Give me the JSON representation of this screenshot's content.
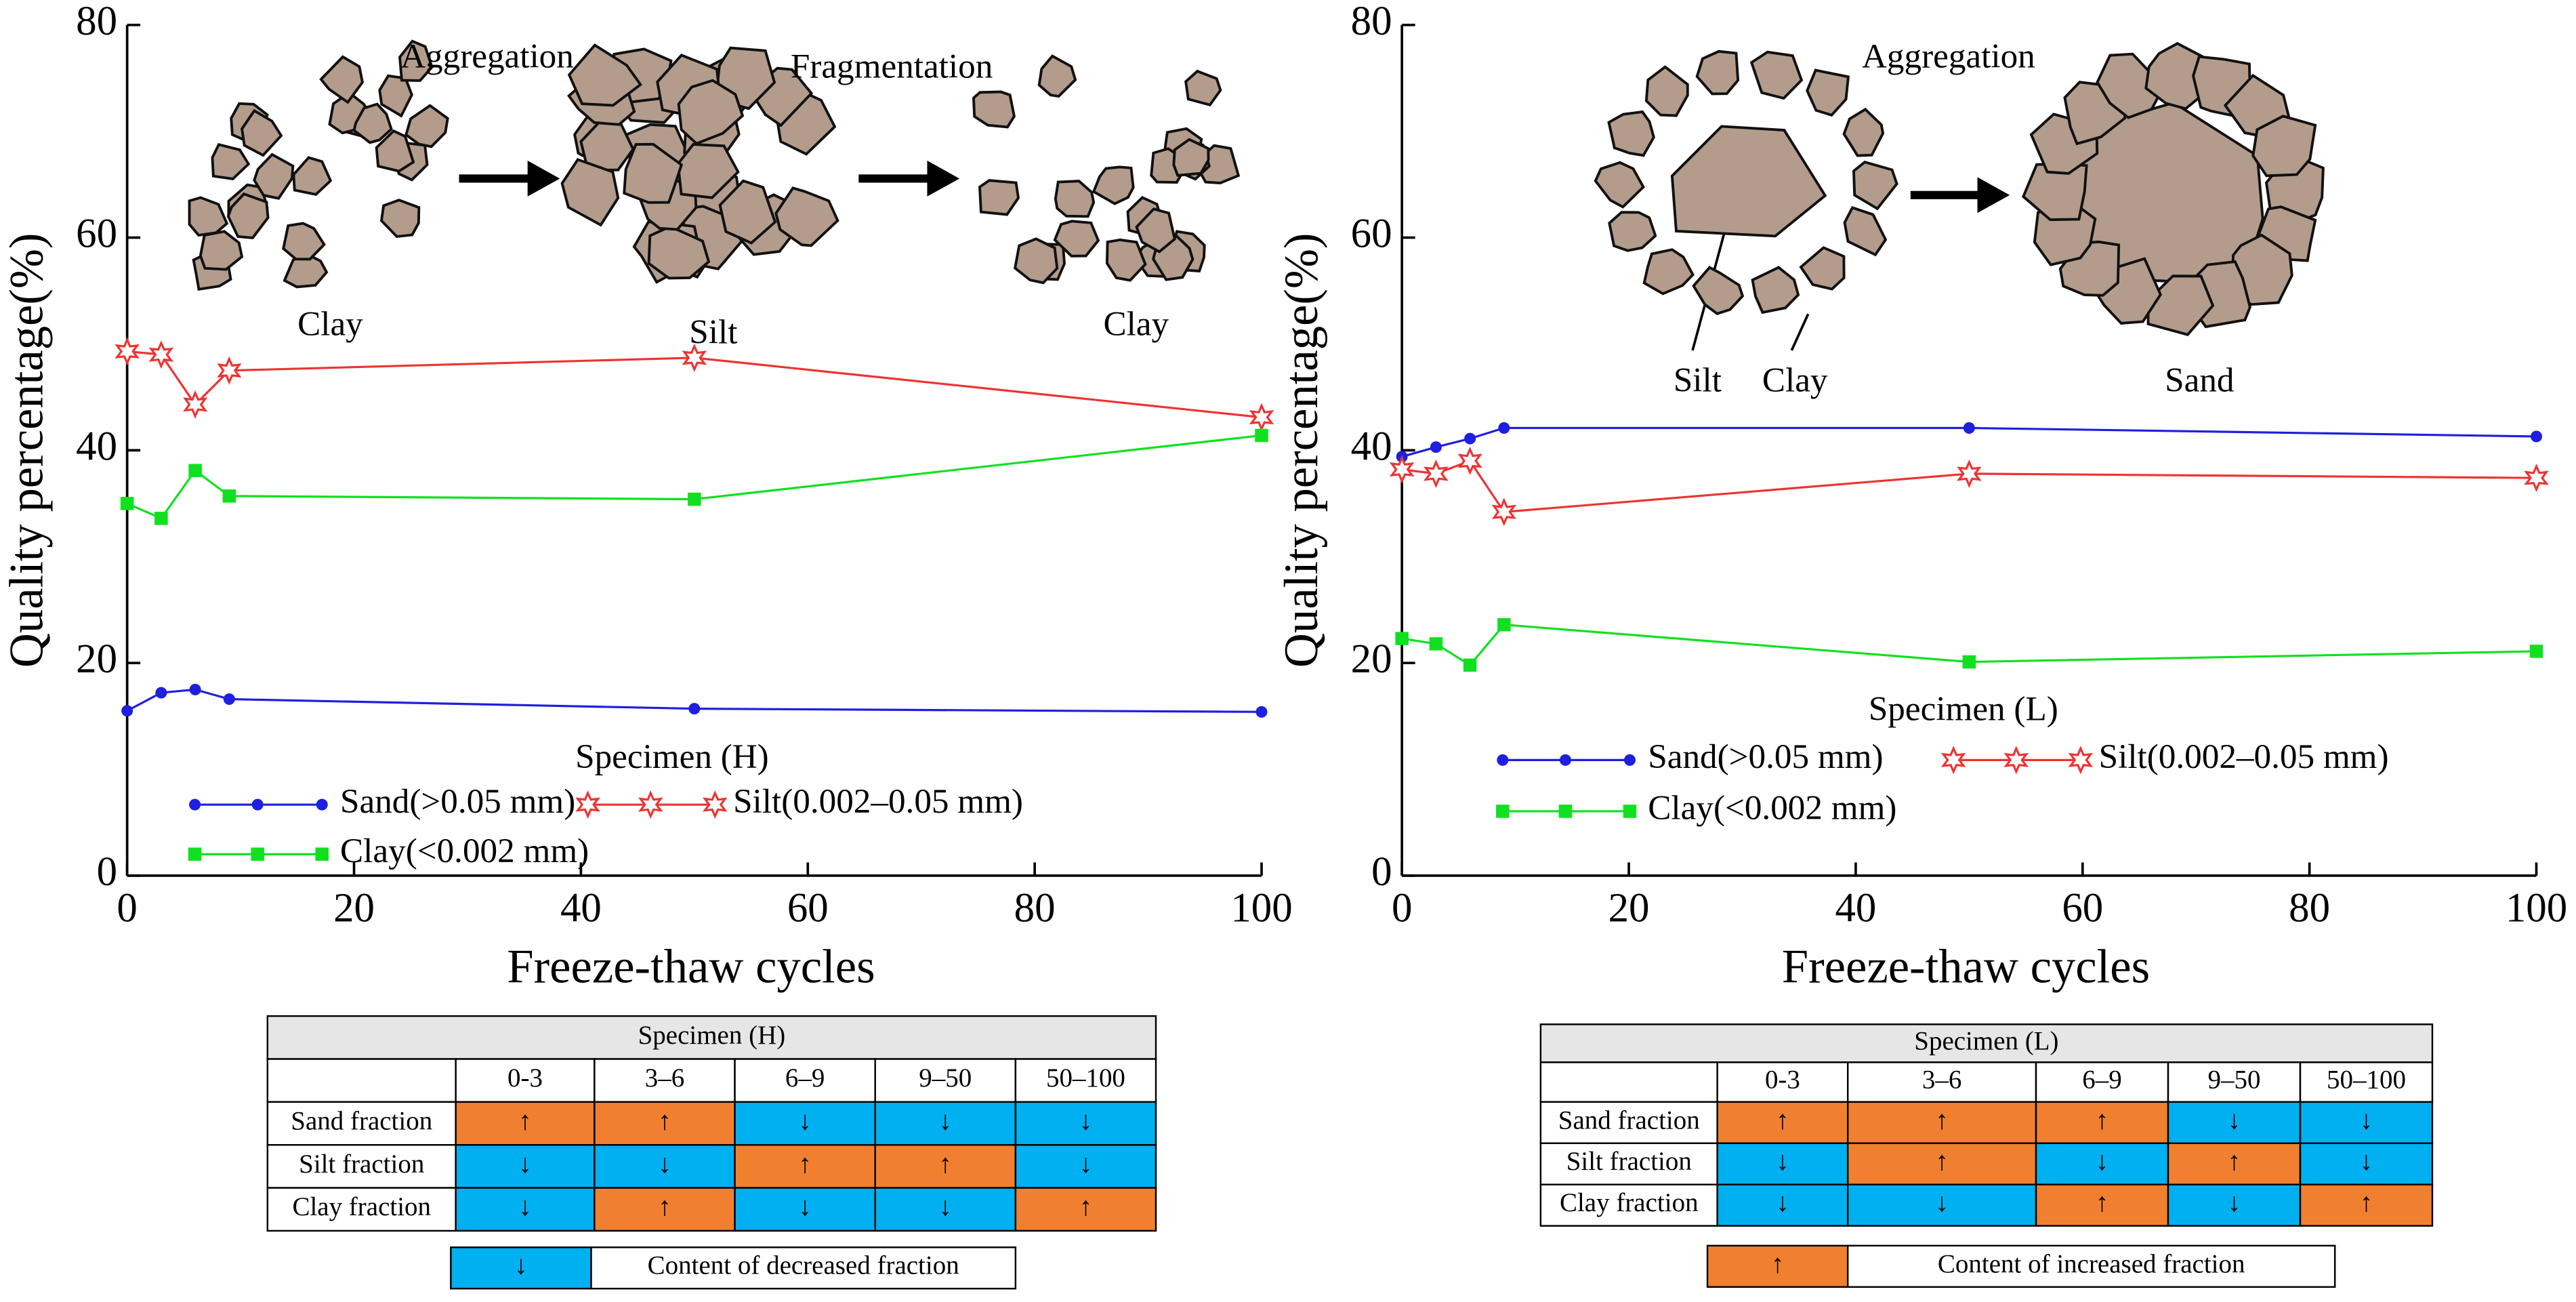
{
  "chart_data": [
    {
      "type": "line",
      "annotation": "Specimen (H)",
      "xlabel": "Freeze-thaw cycles",
      "ylabel": "Quality percentage(%)",
      "x": [
        0,
        3,
        6,
        9,
        50,
        100
      ],
      "xlim": [
        0,
        100
      ],
      "ylim": [
        0,
        80
      ],
      "xticks": [
        0,
        20,
        40,
        60,
        80,
        100
      ],
      "yticks": [
        0,
        20,
        40,
        60,
        80
      ],
      "series": [
        {
          "name": "Sand(>0.05 mm)",
          "color": "#1f1fe0",
          "marker": "circle",
          "values": [
            15.5,
            17.2,
            17.5,
            16.6,
            15.7,
            15.4
          ]
        },
        {
          "name": "Silt(0.002–0.05 mm)",
          "color": "#ee3333",
          "marker": "star",
          "values": [
            49.3,
            49.0,
            44.3,
            47.5,
            48.7,
            43.1
          ]
        },
        {
          "name": "Clay(<0.002 mm)",
          "color": "#10e020",
          "marker": "square",
          "values": [
            35.0,
            33.6,
            38.1,
            35.7,
            35.4,
            41.4
          ]
        }
      ],
      "illustration_labels": [
        "Aggregation",
        "Fragmentation",
        "Clay",
        "Silt",
        "Clay"
      ],
      "table": {
        "title": "Specimen (H)",
        "columns": [
          "0-3",
          "3–6",
          "6–9",
          "9–50",
          "50–100"
        ],
        "rows": [
          {
            "label": "Sand fraction",
            "cells": [
              "↑",
              "↑",
              "↓",
              "↓",
              "↓"
            ]
          },
          {
            "label": "Silt fraction",
            "cells": [
              "↓",
              "↓",
              "↑",
              "↑",
              "↓"
            ]
          },
          {
            "label": "Clay fraction",
            "cells": [
              "↓",
              "↑",
              "↓",
              "↓",
              "↑"
            ]
          }
        ],
        "legend": {
          "symbol": "↓",
          "text": "Content of decreased fraction"
        }
      }
    },
    {
      "type": "line",
      "annotation": "Specimen (L)",
      "xlabel": "Freeze-thaw cycles",
      "ylabel": "Quality percentage(%)",
      "x": [
        0,
        3,
        6,
        9,
        50,
        100
      ],
      "xlim": [
        0,
        100
      ],
      "ylim": [
        0,
        80
      ],
      "xticks": [
        0,
        20,
        40,
        60,
        80,
        100
      ],
      "yticks": [
        0,
        20,
        40,
        60,
        80
      ],
      "series": [
        {
          "name": "Sand(>0.05 mm)",
          "color": "#1f1fe0",
          "marker": "circle",
          "values": [
            39.4,
            40.3,
            41.1,
            42.1,
            42.1,
            41.3
          ]
        },
        {
          "name": "Silt(0.002–0.05 mm)",
          "color": "#ee3333",
          "marker": "star",
          "values": [
            38.2,
            37.8,
            39.0,
            34.2,
            37.8,
            37.4
          ]
        },
        {
          "name": "Clay(<0.002 mm)",
          "color": "#10e020",
          "marker": "square",
          "values": [
            22.3,
            21.8,
            19.8,
            23.6,
            20.1,
            21.1
          ]
        }
      ],
      "illustration_labels": [
        "Aggregation",
        "Silt",
        "Clay",
        "Sand"
      ],
      "table": {
        "title": "Specimen (L)",
        "columns": [
          "0-3",
          "3–6",
          "6–9",
          "9–50",
          "50–100"
        ],
        "rows": [
          {
            "label": "Sand fraction",
            "cells": [
              "↑",
              "↑",
              "↑",
              "↓",
              "↓"
            ]
          },
          {
            "label": "Silt fraction",
            "cells": [
              "↓",
              "↑",
              "↓",
              "↑",
              "↓"
            ]
          },
          {
            "label": "Clay fraction",
            "cells": [
              "↓",
              "↓",
              "↑",
              "↓",
              "↑"
            ]
          }
        ],
        "legend": {
          "symbol": "↑",
          "text": "Content of increased fraction"
        }
      }
    }
  ],
  "cell_colors": {
    "↑": "#f08030",
    "↓": "#00b0f0"
  }
}
